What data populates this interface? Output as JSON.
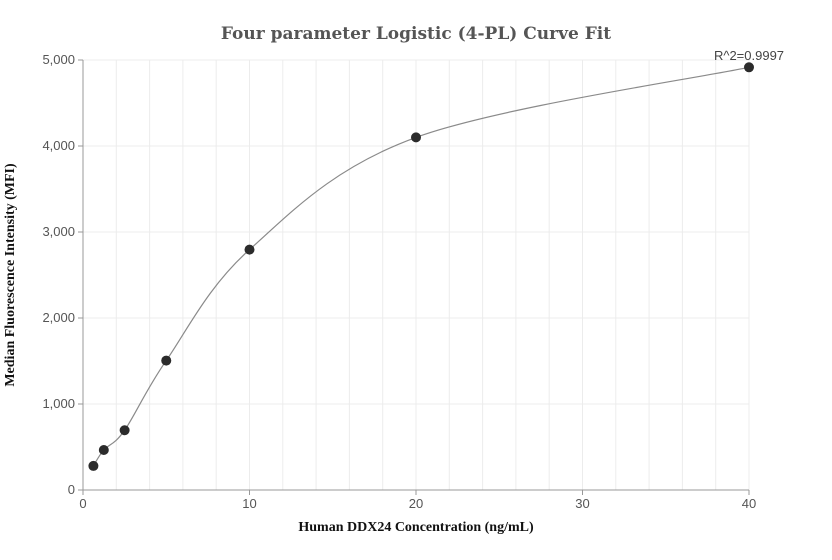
{
  "chart_data": {
    "type": "scatter",
    "title": "Four parameter Logistic (4-PL) Curve Fit",
    "xlabel": "Human DDX24 Concentration (ng/mL)",
    "ylabel": "Median Fluorescence Intensity (MFI)",
    "xlim": [
      0,
      40
    ],
    "ylim": [
      0,
      5000
    ],
    "x_ticks": [
      0,
      10,
      20,
      30,
      40
    ],
    "x_tick_labels": [
      "0",
      "10",
      "20",
      "30",
      "40"
    ],
    "y_ticks": [
      0,
      1000,
      2000,
      3000,
      4000,
      5000
    ],
    "y_tick_labels": [
      "0",
      "1,000",
      "2,000",
      "3,000",
      "4,000",
      "5,000"
    ],
    "grid": true,
    "annotation": "R^2=0.9997",
    "series": [
      {
        "x": [
          0.625,
          1.25,
          2.5,
          5,
          10,
          20,
          40
        ],
        "y": [
          280,
          465,
          695,
          1505,
          2795,
          4100,
          4915
        ]
      }
    ],
    "colors": {
      "point": "#2b2b2b",
      "curve": "#8a8a8a",
      "grid": "#ececec",
      "axis": "#999999"
    }
  }
}
